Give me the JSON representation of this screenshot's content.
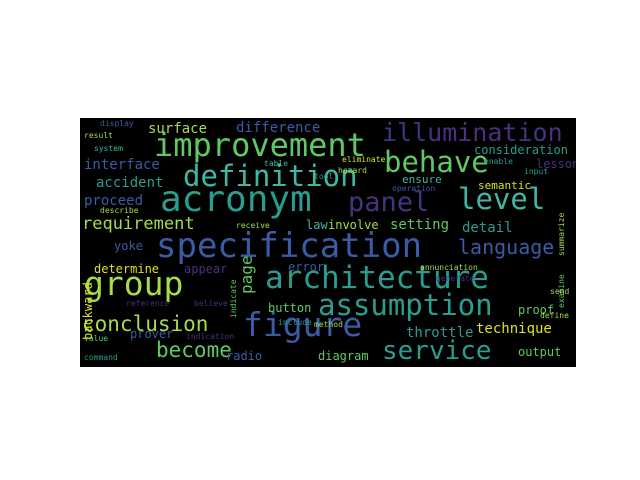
{
  "palette": {
    "background": "#000000",
    "page": "#ffffff",
    "teal": "#2a9d8f",
    "teal_light": "#3fb7a4",
    "blue": "#3b5ba5",
    "indigo": "#46327e",
    "green": "#5ec962",
    "lime": "#a6db4b",
    "yellow": "#dde318",
    "purple": "#482878"
  },
  "words": {
    "specification": "specification",
    "architecture": "architecture",
    "improvement": "improvement",
    "acronym": "acronym",
    "figure": "figure",
    "group": "group",
    "assumption": "assumption",
    "definition": "definition",
    "illumination": "illumination",
    "behave": "behave",
    "panel": "panel",
    "level": "level",
    "service": "service",
    "language": "language",
    "conclusion": "conclusion",
    "become": "become",
    "requirement": "requirement",
    "difference": "difference",
    "surface": "surface",
    "consideration": "consideration",
    "interface": "interface",
    "accident": "accident",
    "proceed": "proceed",
    "detail": "detail",
    "setting": "setting",
    "throttle": "throttle",
    "technique": "technique",
    "semantic": "semantic",
    "ensure": "ensure",
    "lesson": "lesson",
    "involve": "involve",
    "law": "law",
    "page": "page",
    "determine": "determine",
    "appear": "appear",
    "error": "error",
    "yoke": "yoke",
    "backward": "backward",
    "prover": "prover",
    "radio": "radio",
    "button": "button",
    "diagram": "diagram",
    "proof": "proof",
    "output": "output",
    "annunciation": "annunciation",
    "examine": "examine",
    "send": "send",
    "define": "define",
    "indicate": "indicate",
    "indication": "indication",
    "include": "include",
    "method": "method",
    "result": "result",
    "system": "system",
    "display": "display",
    "describe": "describe",
    "receive": "receive",
    "hazard": "hazard",
    "eliminate": "eliminate",
    "enable": "enable",
    "table": "table",
    "tool": "tool",
    "generate": "generate",
    "operation": "operation",
    "input": "input",
    "command": "command",
    "value": "value",
    "believe": "believe",
    "reference": "reference",
    "summarize": "summarize"
  }
}
